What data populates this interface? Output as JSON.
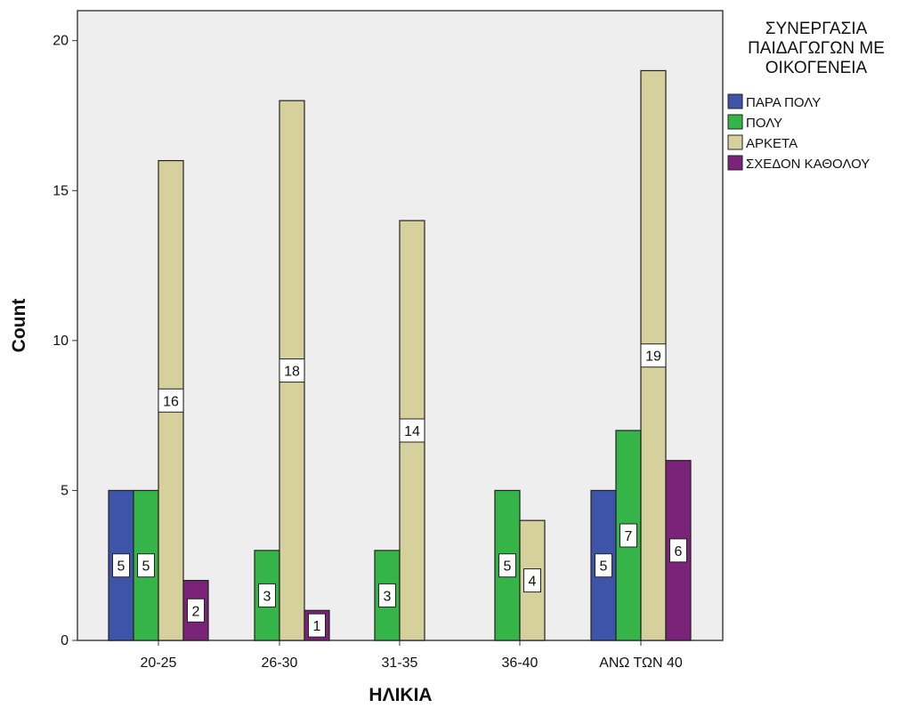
{
  "chart_data": {
    "type": "bar",
    "xlabel": "ΗΛΙΚΙΑ",
    "ylabel": "Count",
    "ylim": [
      0,
      21
    ],
    "yticks": [
      0,
      5,
      10,
      15,
      20
    ],
    "categories": [
      "20-25",
      "26-30",
      "31-35",
      "36-40",
      "ΑΝΩ ΤΩΝ 40"
    ],
    "legend_title": [
      "ΣΥΝΕΡΓΑΣΙΑ",
      "ΠΑΙΔΑΓΩΓΩΝ ΜΕ",
      "ΟΙΚΟΓΕΝΕΙΑ"
    ],
    "legend_position": "top-right outside",
    "grid": false,
    "series": [
      {
        "name": "ΠΑΡΑ ΠΟΛΥ",
        "color": "#3d54a8",
        "values": [
          5,
          null,
          null,
          null,
          5
        ]
      },
      {
        "name": "ΠΟΛΥ",
        "color": "#35b547",
        "values": [
          5,
          3,
          3,
          5,
          7
        ]
      },
      {
        "name": "ΑΡΚΕΤΑ",
        "color": "#d6d19c",
        "values": [
          16,
          18,
          14,
          4,
          19
        ]
      },
      {
        "name": "ΣΧΕΔΟΝ ΚΑΘΟΛΟΥ",
        "color": "#7a2378",
        "values": [
          2,
          1,
          null,
          null,
          6
        ]
      }
    ]
  }
}
